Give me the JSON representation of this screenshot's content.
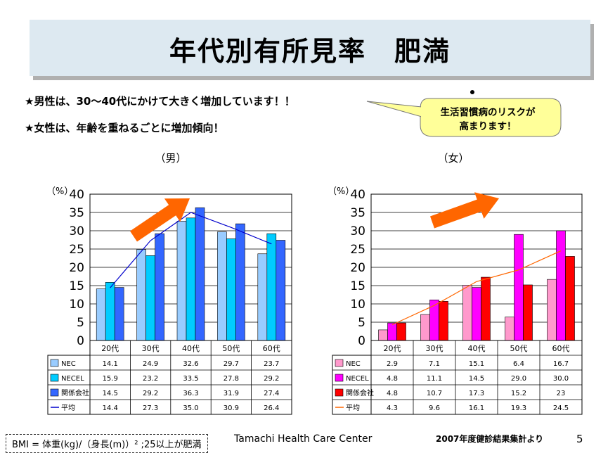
{
  "header": {
    "title": "年代別有所見率　肥満"
  },
  "bullets": [
    "★男性は、30～40代にかけて大きく増加しています！！",
    "★女性は、年齢を重ねるごとに増加傾向！"
  ],
  "callout": {
    "line1": "生活習慣病のリスクが",
    "line2": "高まります！"
  },
  "footer": {
    "bmi_note": "BMI = 体重(kg)/（身長(m)）² ;25以上が肥満",
    "center": "Tamachi Health Care Center",
    "source": "2007年度健診結果集計より",
    "page": "5"
  },
  "colors": {
    "male_nec": "#99ccff",
    "male_necel": "#00ccff",
    "male_kankei": "#3366ff",
    "male_avg": "#0000cc",
    "female_nec": "#ff99cc",
    "female_necel": "#ff00ff",
    "female_kankei": "#ff0000",
    "female_avg": "#ff6600",
    "arrow": "#ff6600",
    "callout_fill": "#ffff99"
  },
  "chart_data": [
    {
      "type": "bar",
      "title": "（男）",
      "ylabel": "（%）",
      "ylim": [
        0,
        40
      ],
      "yticks": [
        "0",
        "5",
        "10",
        "15",
        "20",
        "25",
        "30",
        "35",
        "40"
      ],
      "categories": [
        "20代",
        "30代",
        "40代",
        "50代",
        "60代"
      ],
      "series": [
        {
          "name": "NEC",
          "values": [
            14.1,
            24.9,
            32.6,
            29.7,
            23.7
          ],
          "labels": [
            "14.1",
            "24.9",
            "32.6",
            "29.7",
            "23.7"
          ]
        },
        {
          "name": "NECEL",
          "values": [
            15.9,
            23.2,
            33.5,
            27.8,
            29.2
          ],
          "labels": [
            "15.9",
            "23.2",
            "33.5",
            "27.8",
            "29.2"
          ]
        },
        {
          "name": "関係会社",
          "values": [
            14.5,
            29.2,
            36.3,
            31.9,
            27.4
          ],
          "labels": [
            "14.5",
            "29.2",
            "36.3",
            "31.9",
            "27.4"
          ]
        },
        {
          "name": "平均",
          "type": "line",
          "values": [
            14.4,
            27.3,
            35.0,
            30.9,
            26.4
          ],
          "labels": [
            "14.4",
            "27.3",
            "35.0",
            "30.9",
            "26.4"
          ]
        }
      ]
    },
    {
      "type": "bar",
      "title": "（女）",
      "ylabel": "（%）",
      "ylim": [
        0,
        40
      ],
      "yticks": [
        "0",
        "5",
        "10",
        "15",
        "20",
        "25",
        "30",
        "35",
        "40"
      ],
      "categories": [
        "20代",
        "30代",
        "40代",
        "50代",
        "60代"
      ],
      "series": [
        {
          "name": "NEC",
          "values": [
            2.9,
            7.1,
            15.1,
            6.4,
            16.7
          ],
          "labels": [
            "2.9",
            "7.1",
            "15.1",
            "6.4",
            "16.7"
          ]
        },
        {
          "name": "NECEL",
          "values": [
            4.8,
            11.1,
            14.5,
            29.0,
            30.0
          ],
          "labels": [
            "4.8",
            "11.1",
            "14.5",
            "29.0",
            "30.0"
          ]
        },
        {
          "name": "関係会社",
          "values": [
            4.8,
            10.7,
            17.3,
            15.2,
            23
          ],
          "labels": [
            "4.8",
            "10.7",
            "17.3",
            "15.2",
            "23"
          ]
        },
        {
          "name": "平均",
          "type": "line",
          "values": [
            4.3,
            9.6,
            16.1,
            19.3,
            24.5
          ],
          "labels": [
            "4.3",
            "9.6",
            "16.1",
            "19.3",
            "24.5"
          ]
        }
      ]
    }
  ]
}
